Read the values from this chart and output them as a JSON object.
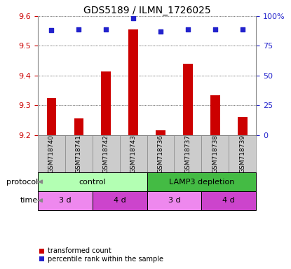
{
  "title": "GDS5189 / ILMN_1726025",
  "samples": [
    "GSM718740",
    "GSM718741",
    "GSM718742",
    "GSM718743",
    "GSM718736",
    "GSM718737",
    "GSM718738",
    "GSM718739"
  ],
  "transformed_counts": [
    9.325,
    9.255,
    9.415,
    9.555,
    9.215,
    9.44,
    9.335,
    9.26
  ],
  "percentile_ranks": [
    88,
    89,
    89,
    98,
    87,
    89,
    89,
    89
  ],
  "ylim_left": [
    9.2,
    9.6
  ],
  "ylim_right": [
    0,
    100
  ],
  "yticks_left": [
    9.2,
    9.3,
    9.4,
    9.5,
    9.6
  ],
  "yticks_right": [
    0,
    25,
    50,
    75,
    100
  ],
  "ytick_right_labels": [
    "0",
    "25",
    "50",
    "75",
    "100%"
  ],
  "protocol_groups": [
    {
      "label": "control",
      "start": 0,
      "end": 4,
      "color": "#b3ffb3"
    },
    {
      "label": "LAMP3 depletion",
      "start": 4,
      "end": 8,
      "color": "#44bb44"
    }
  ],
  "time_groups": [
    {
      "label": "3 d",
      "start": 0,
      "end": 2,
      "color": "#ee88ee"
    },
    {
      "label": "4 d",
      "start": 2,
      "end": 4,
      "color": "#cc44cc"
    },
    {
      "label": "3 d",
      "start": 4,
      "end": 6,
      "color": "#ee88ee"
    },
    {
      "label": "4 d",
      "start": 6,
      "end": 8,
      "color": "#cc44cc"
    }
  ],
  "bar_color": "#cc0000",
  "dot_color": "#2222cc",
  "label_color_left": "#cc0000",
  "label_color_right": "#2222cc",
  "sample_box_color": "#cccccc",
  "sample_box_edge": "#888888",
  "legend_bar_label": "transformed count",
  "legend_dot_label": "percentile rank within the sample",
  "protocol_label": "protocol",
  "time_label": "time"
}
